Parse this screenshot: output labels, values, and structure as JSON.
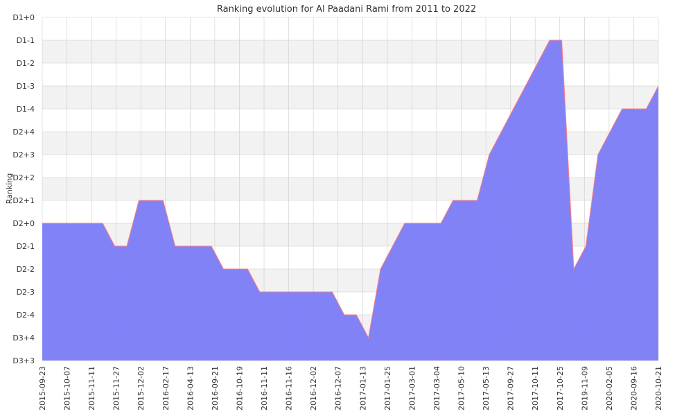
{
  "chart_data": {
    "type": "area",
    "title": "Ranking evolution for Al Paadani Rami from 2011 to 2022",
    "xlabel": "",
    "ylabel": "Ranking",
    "y_levels": [
      "D3+3",
      "D3+4",
      "D2-4",
      "D2-3",
      "D2-2",
      "D2-1",
      "D2+0",
      "D2+1",
      "D2+2",
      "D2+3",
      "D2+4",
      "D1-4",
      "D1-3",
      "D1-2",
      "D1-1",
      "D1+0"
    ],
    "x_tick_labels": [
      "2015-09-23",
      "2015-10-07",
      "2015-11-11",
      "2015-11-27",
      "2015-12-02",
      "2016-02-17",
      "2016-04-13",
      "2016-09-21",
      "2016-10-19",
      "2016-11-11",
      "2016-11-16",
      "2016-12-02",
      "2016-12-07",
      "2017-01-13",
      "2017-01-25",
      "2017-03-01",
      "2017-03-04",
      "2017-05-10",
      "2017-05-13",
      "2017-09-27",
      "2017-10-11",
      "2017-10-25",
      "2019-11-09",
      "2020-02-05",
      "2020-09-16",
      "2020-10-21"
    ],
    "ranking_values": [
      "D2+0",
      "D2+0",
      "D2+0",
      "D2+0",
      "D2+0",
      "D2+0",
      "D2-1",
      "D2-1",
      "D2+1",
      "D2+1",
      "D2+1",
      "D2-1",
      "D2-1",
      "D2-1",
      "D2-1",
      "D2-2",
      "D2-2",
      "D2-2",
      "D2-3",
      "D2-3",
      "D2-3",
      "D2-3",
      "D2-3",
      "D2-3",
      "D2-3",
      "D2-4",
      "D2-4",
      "D3+4",
      "D2-2",
      "D2-1",
      "D2+0",
      "D2+0",
      "D2+0",
      "D2+0",
      "D2+1",
      "D2+1",
      "D2+1",
      "D2+3",
      "D2+4",
      "D1-4",
      "D1-3",
      "D1-2",
      "D1-1",
      "D1-1",
      "D2-2",
      "D2-1",
      "D2+3",
      "D2+4",
      "D1-4",
      "D1-4",
      "D1-4",
      "D1-3"
    ],
    "ylim": [
      "D3+3",
      "D1+0"
    ],
    "grid": true,
    "legend": "none",
    "colors": {
      "fill": "#7B7BF7",
      "line": "#ff7f7f",
      "band": "#f2f2f2",
      "grid": "#cccccc"
    }
  }
}
